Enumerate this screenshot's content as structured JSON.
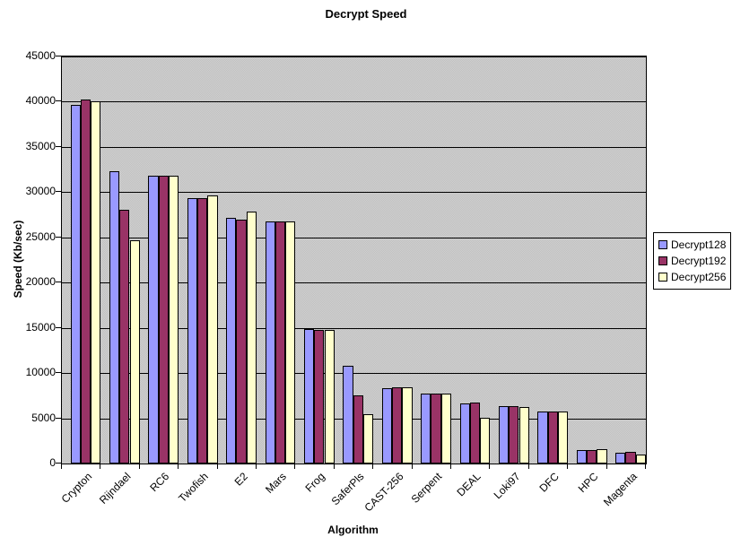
{
  "chart_data": {
    "type": "bar",
    "title": "Decrypt Speed",
    "xlabel": "Algorithm",
    "ylabel": "Speed (Kb/sec)",
    "ylim": [
      0,
      45000
    ],
    "ytick_step": 5000,
    "grid": "horizontal-on",
    "legend_position": "right",
    "plot_background_color": "#c0c0c0",
    "gridline_color": "#000000",
    "categories": [
      "Crypton",
      "Rijndael",
      "RC6",
      "Twofish",
      "E2",
      "Mars",
      "Frog",
      "SaferPls",
      "CAST-256",
      "Serpent",
      "DEAL",
      "Loki97",
      "DFC",
      "HPC",
      "Magenta"
    ],
    "series": [
      {
        "name": "Decrypt128",
        "color": "#9999ff",
        "values": [
          39700,
          32300,
          31800,
          29300,
          27200,
          26800,
          14900,
          10800,
          8300,
          7700,
          6600,
          6300,
          5800,
          1500,
          1200
        ]
      },
      {
        "name": "Decrypt192",
        "color": "#993366",
        "values": [
          40200,
          28100,
          31800,
          29300,
          27000,
          26800,
          14800,
          7500,
          8400,
          7700,
          6700,
          6300,
          5800,
          1500,
          1300
        ]
      },
      {
        "name": "Decrypt256",
        "color": "#ffffcc",
        "values": [
          40000,
          24700,
          31800,
          29600,
          27900,
          26800,
          14800,
          5500,
          8400,
          7700,
          5100,
          6200,
          5800,
          1600,
          1000
        ]
      }
    ],
    "ytick_labels": [
      "0",
      "5000",
      "10000",
      "15000",
      "20000",
      "25000",
      "30000",
      "35000",
      "40000",
      "45000"
    ]
  }
}
